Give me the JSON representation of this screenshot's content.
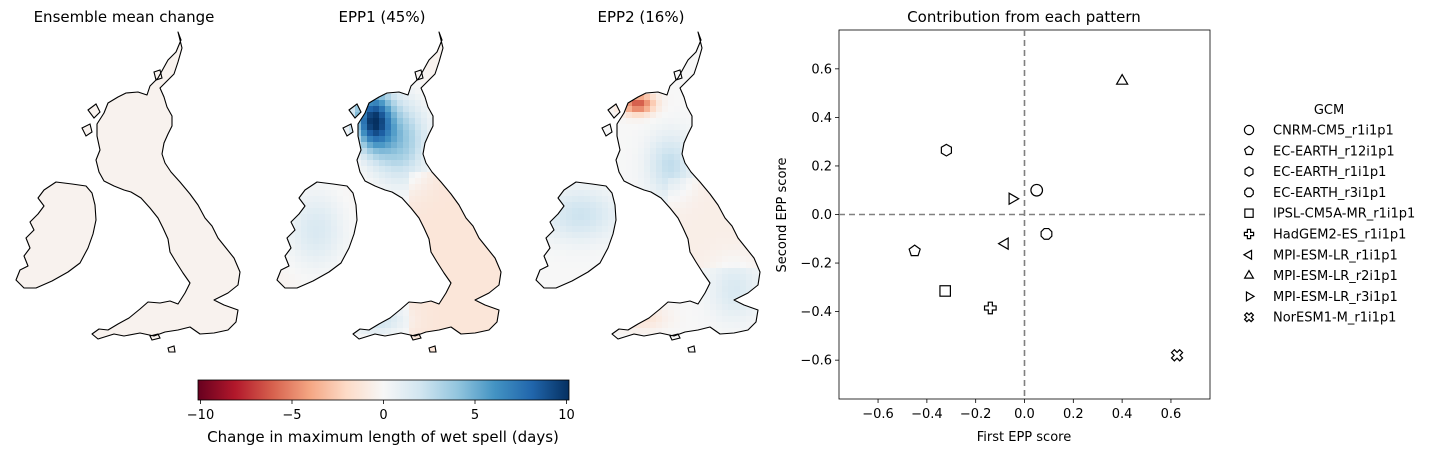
{
  "maps": {
    "panels": [
      {
        "title": "Ensemble mean change"
      },
      {
        "title": "EPP1 (45%)"
      },
      {
        "title": "EPP2 (16%)"
      }
    ],
    "colorbar": {
      "label": "Change in maximum length of wet spell (days)",
      "ticks": [
        "−10",
        "−5",
        "0",
        "5",
        "10"
      ],
      "colormap": [
        "#67001f",
        "#b2182b",
        "#d6604d",
        "#f4a582",
        "#fddbc7",
        "#f7f7f7",
        "#d1e5f0",
        "#92c5de",
        "#4393c3",
        "#2166ac",
        "#053061"
      ]
    }
  },
  "chart_data": {
    "type": "scatter",
    "title": "Contribution from each pattern",
    "xlabel": "First EPP score",
    "ylabel": "Second EPP score",
    "xlim": [
      -0.76,
      0.76
    ],
    "ylim": [
      -0.76,
      0.76
    ],
    "xticks": [
      -0.6,
      -0.4,
      -0.2,
      0.0,
      0.2,
      0.4,
      0.6
    ],
    "xtick_labels": [
      "−0.6",
      "−0.4",
      "−0.2",
      "0.0",
      "0.2",
      "0.4",
      "0.6"
    ],
    "yticks": [
      0.6,
      0.4,
      0.2,
      0.0,
      -0.2,
      -0.4,
      -0.6
    ],
    "ytick_labels": [
      "0.6",
      "0.4",
      "0.2",
      "0.0",
      "−0.2",
      "−0.4",
      "−0.6"
    ],
    "reference_lines": {
      "x": 0.0,
      "y": 0.0,
      "style": "dashed",
      "color": "#808080"
    },
    "legend": {
      "title": "GCM",
      "placement": "right, outside",
      "entries": [
        {
          "name": "CNRM-CM5_r1i1p1",
          "marker": "circle",
          "x": 0.05,
          "y": 0.1
        },
        {
          "name": "EC-EARTH_r12i1p1",
          "marker": "pentagon",
          "x": -0.45,
          "y": -0.15
        },
        {
          "name": "EC-EARTH_r1i1p1",
          "marker": "hexagon",
          "x": -0.32,
          "y": 0.265
        },
        {
          "name": "EC-EARTH_r3i1p1",
          "marker": "octagon",
          "x": 0.09,
          "y": -0.08
        },
        {
          "name": "IPSL-CM5A-MR_r1i1p1",
          "marker": "square",
          "x": -0.325,
          "y": -0.315
        },
        {
          "name": "HadGEM2-ES_r1i1p1",
          "marker": "plus",
          "x": -0.14,
          "y": -0.385
        },
        {
          "name": "MPI-ESM-LR_r1i1p1",
          "marker": "triangle-left",
          "x": -0.08,
          "y": -0.12
        },
        {
          "name": "MPI-ESM-LR_r2i1p1",
          "marker": "triangle-up",
          "x": 0.4,
          "y": 0.55
        },
        {
          "name": "MPI-ESM-LR_r3i1p1",
          "marker": "triangle-right",
          "x": -0.05,
          "y": 0.065
        },
        {
          "name": "NorESM1-M_r1i1p1",
          "marker": "x-filled",
          "x": 0.625,
          "y": -0.58
        }
      ]
    }
  }
}
